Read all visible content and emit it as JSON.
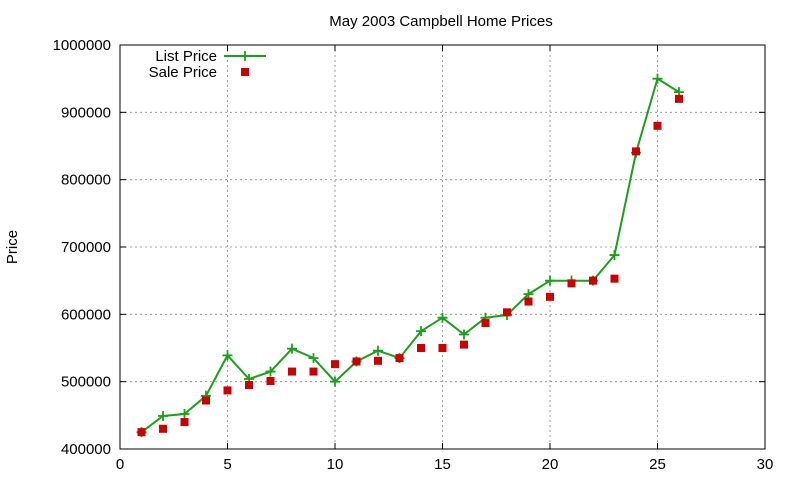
{
  "chart_data": {
    "type": "line",
    "title": "May 2003 Campbell Home Prices",
    "xlabel": "",
    "ylabel": "Price",
    "xlim": [
      0,
      30
    ],
    "ylim": [
      400000,
      1000000
    ],
    "x_ticks": [
      0,
      5,
      10,
      15,
      20,
      25,
      30
    ],
    "y_ticks": [
      400000,
      500000,
      600000,
      700000,
      800000,
      900000,
      1000000
    ],
    "grid": true,
    "legend_position": "top-left",
    "series": [
      {
        "name": "List Price",
        "style": "line-points",
        "color": "#1aa01a",
        "x": [
          1,
          2,
          3,
          4,
          5,
          6,
          7,
          8,
          9,
          10,
          11,
          12,
          13,
          14,
          15,
          16,
          17,
          18,
          19,
          20,
          21,
          22,
          23,
          24,
          25,
          26
        ],
        "y": [
          425000,
          449000,
          452000,
          479000,
          539000,
          504000,
          515000,
          549000,
          535000,
          500000,
          530000,
          546000,
          535000,
          575000,
          595000,
          570000,
          595000,
          599000,
          630000,
          650000,
          650000,
          650000,
          688000,
          840000,
          950000,
          930000
        ]
      },
      {
        "name": "Sale Price",
        "style": "points",
        "color": "#cc0000",
        "x": [
          1,
          2,
          3,
          4,
          5,
          6,
          7,
          8,
          9,
          10,
          11,
          12,
          13,
          14,
          15,
          16,
          17,
          18,
          19,
          20,
          21,
          22,
          23,
          24,
          25,
          26
        ],
        "y": [
          425000,
          430000,
          440000,
          472000,
          487000,
          495000,
          501000,
          515000,
          515000,
          526000,
          530000,
          531000,
          535000,
          550000,
          550000,
          555000,
          587000,
          603000,
          619000,
          626000,
          646000,
          650000,
          653000,
          842000,
          880000,
          920000
        ]
      }
    ]
  }
}
